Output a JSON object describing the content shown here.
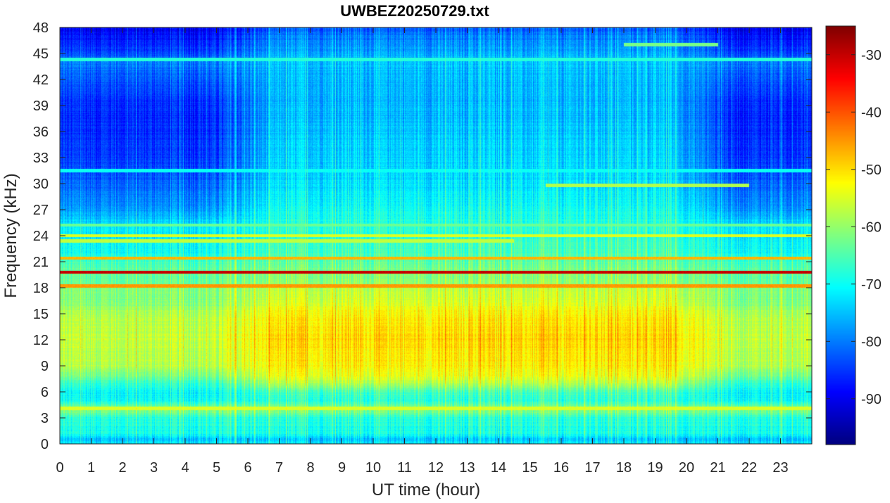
{
  "chart_data": {
    "type": "heatmap",
    "title": "UWBEZ20250729.txt",
    "xlabel": "UT time (hour)",
    "ylabel": "Frequency (kHz)",
    "xlim": [
      0,
      24
    ],
    "ylim": [
      0,
      48
    ],
    "x_ticks": [
      0,
      1,
      2,
      3,
      4,
      5,
      6,
      7,
      8,
      9,
      10,
      11,
      12,
      13,
      14,
      15,
      16,
      17,
      18,
      19,
      20,
      21,
      22,
      23
    ],
    "y_ticks": [
      0,
      3,
      6,
      9,
      12,
      15,
      18,
      21,
      24,
      27,
      30,
      33,
      36,
      39,
      42,
      45,
      48
    ],
    "colorbar": {
      "colormap": "jet",
      "range": [
        -98,
        -25
      ],
      "ticks": [
        -90,
        -80,
        -70,
        -60,
        -50,
        -40,
        -30
      ]
    },
    "background_profile": {
      "frequency_khz": [
        0,
        0.5,
        1,
        3,
        4,
        5,
        6,
        7,
        8,
        9,
        12,
        15,
        16,
        18,
        18.5,
        20,
        21,
        22,
        24,
        25,
        27,
        30,
        33,
        36,
        39,
        42,
        44,
        45,
        47,
        48
      ],
      "night_db": [
        -72,
        -76,
        -70,
        -68,
        -60,
        -70,
        -71,
        -67,
        -62,
        -58,
        -57,
        -58,
        -61,
        -62,
        -63,
        -64,
        -66,
        -70,
        -72,
        -72,
        -78,
        -82,
        -85,
        -86,
        -86,
        -83,
        -80,
        -84,
        -88,
        -90
      ],
      "day_db": [
        -72,
        -76,
        -70,
        -68,
        -60,
        -68,
        -66,
        -58,
        -54,
        -52,
        -50,
        -52,
        -55,
        -58,
        -60,
        -62,
        -64,
        -66,
        -68,
        -68,
        -70,
        -73,
        -74,
        -75,
        -76,
        -76,
        -75,
        -77,
        -80,
        -83
      ]
    },
    "day_window_hours": [
      6,
      20.5
    ],
    "spectral_lines": [
      {
        "frequency_khz": 19.8,
        "start_hour": 0,
        "end_hour": 24,
        "level_db": -30
      },
      {
        "frequency_khz": 18.2,
        "start_hour": 0,
        "end_hour": 24,
        "level_db": -45
      },
      {
        "frequency_khz": 21.4,
        "start_hour": 0,
        "end_hour": 24,
        "level_db": -47
      },
      {
        "frequency_khz": 24.0,
        "start_hour": 0,
        "end_hour": 24,
        "level_db": -55
      },
      {
        "frequency_khz": 23.4,
        "start_hour": 0,
        "end_hour": 14.5,
        "level_db": -57
      },
      {
        "frequency_khz": 25.2,
        "start_hour": 0,
        "end_hour": 24,
        "level_db": -63
      },
      {
        "frequency_khz": 4.1,
        "start_hour": 0,
        "end_hour": 24,
        "level_db": -55
      },
      {
        "frequency_khz": 44.3,
        "start_hour": 0,
        "end_hour": 24,
        "level_db": -68
      },
      {
        "frequency_khz": 31.5,
        "start_hour": 0,
        "end_hour": 24,
        "level_db": -70
      },
      {
        "frequency_khz": 29.8,
        "start_hour": 15.5,
        "end_hour": 22,
        "level_db": -58
      },
      {
        "frequency_khz": 46.0,
        "start_hour": 18,
        "end_hour": 21,
        "level_db": -62
      }
    ]
  }
}
